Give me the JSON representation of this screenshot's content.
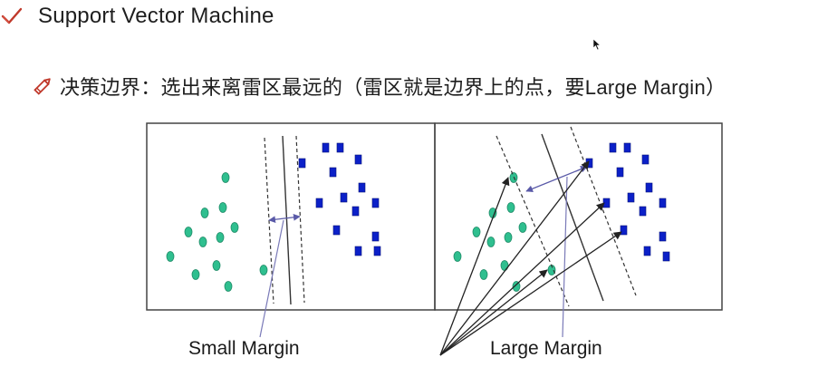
{
  "header": {
    "title": "Support Vector Machine",
    "subtitle": "决策边界：选出来离雷区最远的（雷区就是边界上的点，要Large Margin）"
  },
  "figure": {
    "left_caption": "Small Margin",
    "right_caption": "Large Margin",
    "colors": {
      "circle_fill": "#2fbf8f",
      "square_fill": "#0b20c8",
      "line": "#333333",
      "margin_arrow": "#5a5aa8",
      "frame": "#444444"
    }
  },
  "icons": {
    "check": "check-icon",
    "pencil": "pencil-icon",
    "cursor": "mouse-cursor-icon"
  }
}
